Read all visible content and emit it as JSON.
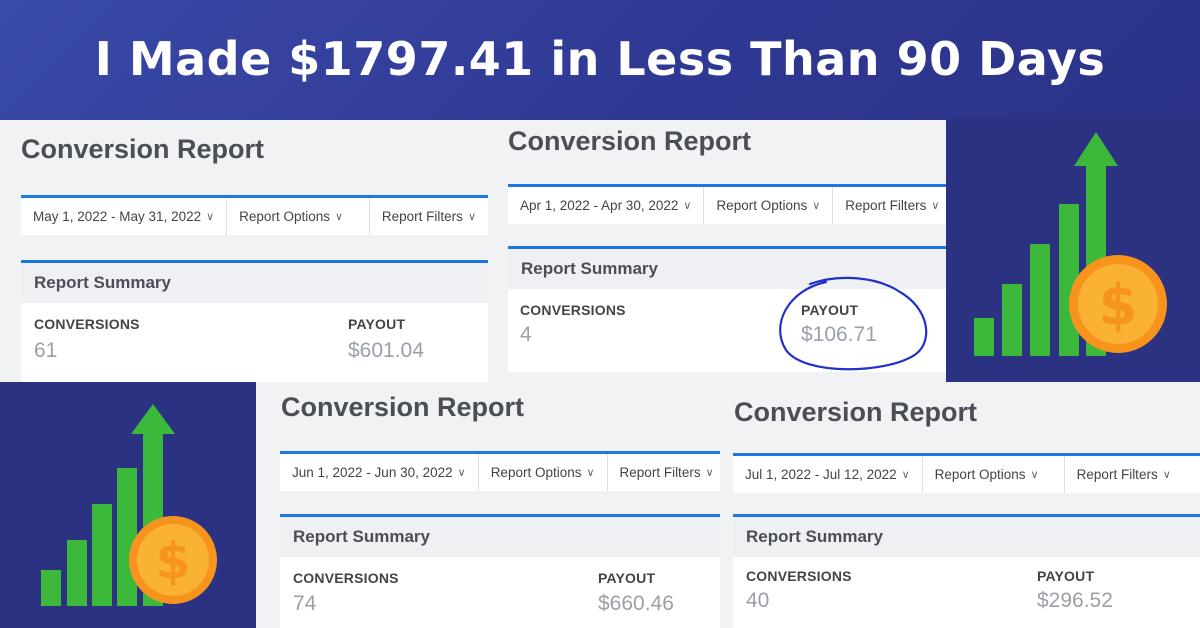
{
  "headline": "I Made $1797.41 in Less Than 90 Days",
  "reports": [
    {
      "title": "Conversion Report",
      "date_range": "May 1, 2022 - May 31, 2022",
      "report_options": "Report Options",
      "report_filters": "Report Filters",
      "summary_title": "Report Summary",
      "conversions_label": "CONVERSIONS",
      "conversions_value": "61",
      "payout_label": "PAYOUT",
      "payout_value": "$601.04"
    },
    {
      "title": "Conversion Report",
      "date_range": "Apr 1, 2022 - Apr 30, 2022",
      "report_options": "Report Options",
      "report_filters": "Report Filters",
      "summary_title": "Report Summary",
      "conversions_label": "CONVERSIONS",
      "conversions_value": "4",
      "payout_label": "PAYOUT",
      "payout_value": "$106.71"
    },
    {
      "title": "Conversion Report",
      "date_range": "Jun 1, 2022 - Jun 30, 2022",
      "report_options": "Report Options",
      "report_filters": "Report Filters",
      "summary_title": "Report Summary",
      "conversions_label": "CONVERSIONS",
      "conversions_value": "74",
      "payout_label": "PAYOUT",
      "payout_value": "$660.46"
    },
    {
      "title": "Conversion Report",
      "date_range": "Jul 1, 2022 - Jul 12, 2022",
      "report_options": "Report Options",
      "report_filters": "Report Filters",
      "summary_title": "Report Summary",
      "conversions_label": "CONVERSIONS",
      "conversions_value": "40",
      "payout_label": "PAYOUT",
      "payout_value": "$296.52"
    }
  ],
  "icons": {
    "growth": "growth-chart-dollar-icon",
    "chevron": "chevron-down-icon"
  },
  "colors": {
    "background": "#2e3791",
    "accent_blue": "#1f78e0",
    "bar_green": "#3cb83a",
    "coin_orange": "#f7941d",
    "coin_yellow": "#f9b233",
    "scribble_blue": "#2230c8"
  }
}
